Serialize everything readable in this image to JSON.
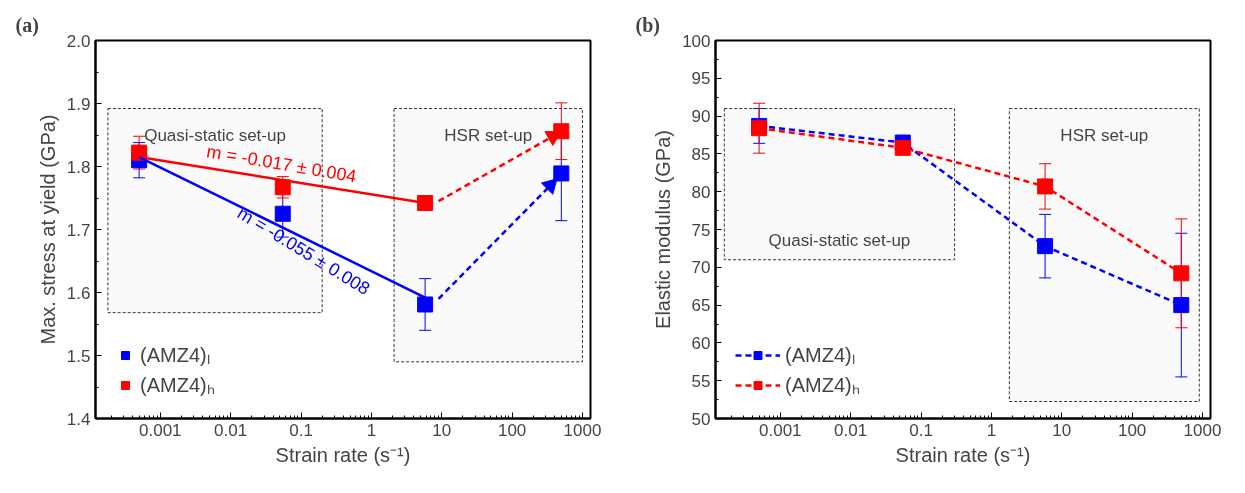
{
  "chart_data": [
    {
      "type": "scatter",
      "title": "(a)",
      "xlabel": "Strain rate (s⁻¹)",
      "ylabel": "Max. stress at yield (GPa)",
      "log": "x",
      "xlim": [
        0.00012,
        1300
      ],
      "xticks": [
        0.001,
        0.01,
        0.1,
        1,
        10,
        100,
        1000
      ],
      "ylim": [
        1.4,
        2.0
      ],
      "yticks": [
        1.4,
        1.5,
        1.6,
        1.7,
        1.8,
        1.9,
        {
          "value": 2.0,
          "label": "2.0"
        }
      ],
      "grid": false,
      "legend": "bottom left",
      "marker": "square",
      "series": [
        {
          "name": "(AMZ4)ₗ",
          "color": "#0000ff",
          "x": [
            0.0005,
            0.055,
            5.8,
            500
          ],
          "values": [
            1.81,
            1.725,
            1.581,
            1.789
          ],
          "errors": [
            0.028,
            0.037,
            0.041,
            0.075
          ]
        },
        {
          "name": "(AMZ4)ₕ",
          "color": "#ff0000",
          "x": [
            0.0005,
            0.055,
            5.8,
            500
          ],
          "values": [
            1.822,
            1.767,
            1.742,
            1.856
          ],
          "errors": [
            0.026,
            0.017,
            0.005,
            0.045
          ]
        },
        {
          "type": "line",
          "color": "#ff0000",
          "x": [
            0.0005,
            5.8
          ],
          "values": [
            1.815,
            1.742
          ],
          "line_style": "solid",
          "marker": "none"
        },
        {
          "type": "line",
          "color": "#0000ff",
          "x": [
            0.0005,
            5.8
          ],
          "values": [
            1.815,
            1.592
          ],
          "line_style": "solid",
          "marker": "none"
        },
        {
          "type": "line",
          "color": "#0000ff",
          "x": [
            9,
            350
          ],
          "values": [
            1.59,
            1.77
          ],
          "line_style": "dashed",
          "marker": "triangle"
        },
        {
          "type": "line",
          "color": "#ff0000",
          "x": [
            9,
            380
          ],
          "values": [
            1.745,
            1.848
          ],
          "line_style": "dashed",
          "marker": "triangle"
        }
      ],
      "bands": [
        {
          "axis": "x",
          "from": 0.00018,
          "to": 0.2,
          "label": "Quasi-static set-up"
        },
        {
          "axis": "x",
          "from": 2.1,
          "to": 1000,
          "label": "HSR set-up"
        }
      ],
      "annotations": [
        {
          "text": "m = -0.017 ± 0.004",
          "x": 0.05,
          "y": 1.779
        },
        {
          "text": "m = -0.055 ± 0.008",
          "x": 0.1,
          "y": 1.689
        }
      ]
    },
    {
      "type": "line",
      "title": "(b)",
      "xlabel": "Strain rate (s⁻¹)",
      "ylabel": "Elastic modulus (GPa)",
      "log": "x",
      "xlim": [
        0.00012,
        1300
      ],
      "xticks": [
        0.001,
        0.01,
        0.1,
        1,
        10,
        100,
        1000
      ],
      "ylim": [
        50,
        100
      ],
      "yticks": [
        50,
        55,
        60,
        65,
        70,
        75,
        80,
        85,
        90,
        95,
        100
      ],
      "grid": false,
      "legend": "bottom left",
      "marker": "square",
      "line_style": "dashed",
      "series": [
        {
          "name": "(AMZ4)ₗ",
          "color": "#0000ff",
          "x": [
            0.0005,
            0.055,
            5.8,
            500
          ],
          "values": [
            88.7,
            86.5,
            72.8,
            65.0
          ],
          "errors": [
            2.3,
            0.6,
            4.2,
            9.5
          ]
        },
        {
          "name": "(AMZ4)ₕ",
          "color": "#ff0000",
          "x": [
            0.0005,
            0.055,
            5.8,
            500
          ],
          "values": [
            88.4,
            85.8,
            80.7,
            69.2
          ],
          "errors": [
            3.3,
            0.6,
            3.0,
            7.2
          ]
        }
      ],
      "bands": [
        {
          "axis": "x",
          "from": 0.00016,
          "to": 0.3,
          "label": "Quasi-static set-up"
        },
        {
          "axis": "x",
          "from": 1.8,
          "to": 900,
          "label": "HSR set-up"
        }
      ]
    }
  ]
}
